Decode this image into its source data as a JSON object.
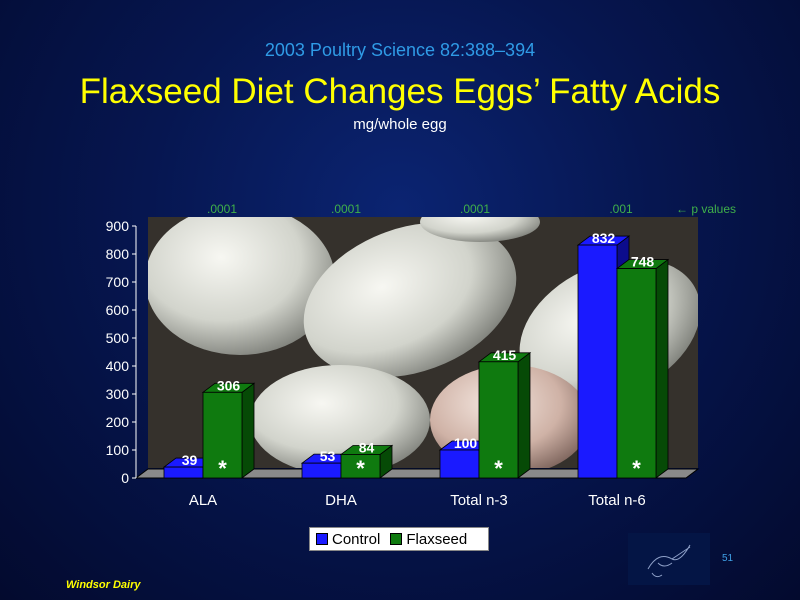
{
  "header": {
    "citation": "2003 Poultry Science 82:388–394",
    "title": "Flaxseed Diet Changes Eggs’ Fatty Acids",
    "units": "mg/whole egg"
  },
  "p_values": {
    "values": [
      ".0001",
      ".0001",
      ".0001",
      ".001"
    ],
    "note": "← p values"
  },
  "chart_data": {
    "type": "bar",
    "categories": [
      "ALA",
      "DHA",
      "Total n-3",
      "Total n-6"
    ],
    "series": [
      {
        "name": "Control",
        "values": [
          39,
          53,
          100,
          832
        ],
        "color": "#1a1aff"
      },
      {
        "name": "Flaxseed",
        "values": [
          306,
          84,
          415,
          748
        ],
        "color": "#0f7a0f"
      }
    ],
    "yticks": [
      0,
      100,
      200,
      300,
      400,
      500,
      600,
      700,
      800,
      900
    ],
    "ylim": [
      0,
      900
    ],
    "significance_marker": "*",
    "background": "photo of eggs",
    "legend_position": "bottom-center"
  },
  "legend": {
    "control": "Control",
    "flaxseed": "Flaxseed"
  },
  "footer": {
    "brand": "Windsor Dairy",
    "page": "51"
  },
  "logo": {
    "icon": "pen-sketch-logo-icon"
  }
}
